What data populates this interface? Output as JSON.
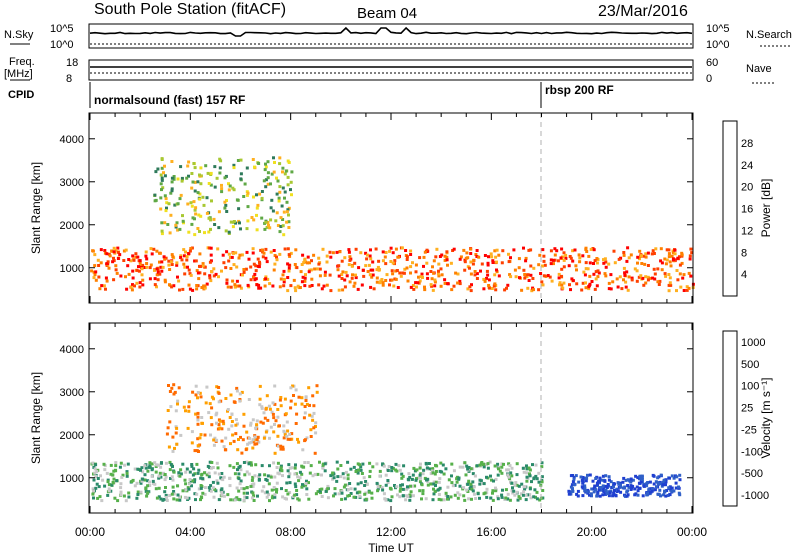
{
  "header": {
    "station": "South Pole Station (fitACF)",
    "beam": "Beam 04",
    "date": "23/Mar/2016"
  },
  "top_panels": {
    "nsky_label": "N.Sky",
    "nsearch_label": "N.Search",
    "freq_label": "Freq.",
    "freq_unit": "[MHz]",
    "nave_label": "Nave",
    "cpid_label": "CPID",
    "left_ticks_nsky": [
      "10^5",
      "10^0"
    ],
    "right_ticks_nsky": [
      "10^5",
      "10^0"
    ],
    "left_ticks_freq": [
      "18",
      "8"
    ],
    "right_ticks_nave": [
      "60",
      "0"
    ],
    "cpid_segments": [
      {
        "label": "normalsound (fast) 157 RF",
        "start_hour": 0
      },
      {
        "label": "rbsp 200 RF",
        "start_hour": 18
      }
    ]
  },
  "chart_data": [
    {
      "type": "heatmap",
      "parameter": "Power",
      "ylabel": "Slant Range [km]",
      "xlabel": "Time UT",
      "x_range_hours": [
        0,
        24
      ],
      "ylim": [
        180,
        4600
      ],
      "x_ticks": [
        "00:00",
        "04:00",
        "08:00",
        "12:00",
        "16:00",
        "20:00",
        "00:00"
      ],
      "y_ticks": [
        1000,
        2000,
        3000,
        4000
      ],
      "colorbar": {
        "label": "Power [dB]",
        "ticks": [
          "4",
          "8",
          "12",
          "16",
          "20",
          "24",
          "28"
        ],
        "range": [
          0,
          32
        ],
        "colors": [
          "#1a1aff",
          "#2c4aa6",
          "#2e7a5a",
          "#5fa845",
          "#a8c832",
          "#f0e020",
          "#ffb020",
          "#ff8000",
          "#ff4000",
          "#ff0000"
        ]
      },
      "features": [
        {
          "name": "dense lower band",
          "start_hour": 0,
          "end_hour": 24,
          "range_km": [
            500,
            1500
          ],
          "typical_db": 26
        },
        {
          "name": "upper patches",
          "start_hour": 2.5,
          "end_hour": 8,
          "range_km": [
            1800,
            3600
          ],
          "typical_db": 14
        }
      ]
    },
    {
      "type": "heatmap",
      "parameter": "Velocity",
      "ylabel": "Slant Range [km]",
      "xlabel": "Time UT",
      "x_range_hours": [
        0,
        24
      ],
      "ylim": [
        180,
        4600
      ],
      "x_ticks": [
        "00:00",
        "04:00",
        "08:00",
        "12:00",
        "16:00",
        "20:00",
        "00:00"
      ],
      "y_ticks": [
        1000,
        2000,
        3000,
        4000
      ],
      "colorbar": {
        "label": "Velocity [m s⁻¹]",
        "ticks": [
          "1000",
          "500",
          "100",
          "25",
          "-25",
          "-100",
          "-500",
          "-1000"
        ],
        "colors": [
          "#1f3fd0",
          "#3060c8",
          "#2a8a6a",
          "#56b04a",
          "#c8c8c8",
          "#ffa000",
          "#ff6a00",
          "#ff2a00",
          "#ff0000"
        ]
      },
      "features": [
        {
          "name": "dominant green band",
          "start_hour": 0,
          "end_hour": 18,
          "range_km": [
            500,
            1400
          ],
          "typical_ms": 100
        },
        {
          "name": "blue positive region",
          "start_hour": 19,
          "end_hour": 23.5,
          "range_km": [
            600,
            1100
          ],
          "typical_ms": 600
        },
        {
          "name": "orange negative patches",
          "start_hour": 3,
          "end_hour": 9,
          "range_km": [
            1600,
            3200
          ],
          "typical_ms": -200
        }
      ]
    }
  ],
  "colors": {
    "frame": "#000000",
    "dashed_marker": "#b0b0b0"
  }
}
